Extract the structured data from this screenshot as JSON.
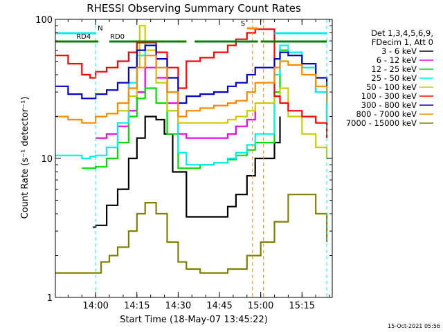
{
  "chart_data": {
    "type": "line",
    "title": "RHESSI Observing Summary Count Rates",
    "xlabel": "Start Time (18-May-07 13:45:22)",
    "ylabel": "Count Rate (s⁻¹ detector⁻¹)",
    "yscale": "log",
    "ylim": [
      1,
      100
    ],
    "xlim": [
      "13:45:22",
      "15:26"
    ],
    "x_ticks": [
      "14:00",
      "14:15",
      "14:30",
      "14:45",
      "15:00",
      "15:15"
    ],
    "y_ticks": [
      "1",
      "10",
      "100"
    ],
    "legend": {
      "position": "right",
      "header": [
        "Det 1,3,4,5,6,9,",
        "FDecim 1, Att 0"
      ],
      "entries": [
        {
          "label": "3 - 6 keV",
          "color": "#000000"
        },
        {
          "label": "6 - 12 keV",
          "color": "#ee00ee"
        },
        {
          "label": "12 - 25 keV",
          "color": "#00dd00"
        },
        {
          "label": "25 - 50 keV",
          "color": "#00eeee"
        },
        {
          "label": "50 - 100 keV",
          "color": "#cccc00"
        },
        {
          "label": "100 - 300 keV",
          "color": "#ff0000"
        },
        {
          "label": "300 - 800 keV",
          "color": "#0000cc"
        },
        {
          "label": "800 - 7000 keV",
          "color": "#ff8800"
        },
        {
          "label": "7000 - 15000 keV",
          "color": "#808000"
        }
      ]
    },
    "series": [
      {
        "name": "3 - 6 keV",
        "color": "#000000",
        "x": [
          "13:59",
          "14:00",
          "14:04",
          "14:08",
          "14:12",
          "14:15",
          "14:18",
          "14:22",
          "14:25",
          "14:28",
          "14:33",
          "14:38",
          "14:43",
          "14:48",
          "14:51",
          "14:55",
          "14:58",
          "15:05",
          "15:07"
        ],
        "y": [
          3.2,
          3.3,
          4.6,
          6.0,
          10,
          14,
          20,
          19,
          15,
          8,
          3.8,
          3.8,
          3.8,
          4.5,
          5.5,
          7.5,
          10,
          13,
          20
        ]
      },
      {
        "name": "6 - 12 keV",
        "color": "#ee00ee",
        "x": [
          "14:00",
          "14:04",
          "14:08",
          "14:12",
          "14:15",
          "14:18",
          "14:22",
          "14:26",
          "14:30",
          "14:33",
          "14:38",
          "14:43",
          "14:48",
          "14:51",
          "14:55",
          "14:58"
        ],
        "y": [
          14,
          15,
          17,
          22,
          30,
          45,
          38,
          25,
          15,
          14,
          14,
          14,
          15,
          17,
          19,
          23
        ]
      },
      {
        "name": "12 - 25 keV",
        "color": "#00dd00",
        "x": [
          "13:55",
          "13:58",
          "14:00",
          "14:04",
          "14:08",
          "14:12",
          "14:15",
          "14:18",
          "14:22",
          "14:26",
          "14:30",
          "14:33",
          "14:38",
          "14:43",
          "14:48",
          "14:51",
          "14:55",
          "14:58",
          "15:05",
          "15:07",
          "15:10",
          "15:15",
          "15:20",
          "15:24"
        ],
        "y": [
          8.5,
          8.5,
          8.7,
          10,
          13,
          20,
          27,
          32,
          25,
          15,
          8.5,
          8.5,
          9,
          9.3,
          9.8,
          10.5,
          11.5,
          13,
          30,
          60,
          55,
          45,
          30,
          18
        ]
      },
      {
        "name": "25 - 50 keV",
        "color": "#00eeee",
        "x": [
          "13:45:22",
          "13:55",
          "13:58",
          "14:00",
          "14:04",
          "14:08",
          "14:12",
          "14:15",
          "14:18",
          "14:22",
          "14:26",
          "14:30",
          "14:33",
          "14:38",
          "14:43",
          "14:48",
          "14:51",
          "14:55",
          "14:58",
          "15:05",
          "15:07",
          "15:10",
          "15:15",
          "15:20",
          "15:24"
        ],
        "y": [
          10.5,
          10,
          10.3,
          10.5,
          12,
          18,
          35,
          55,
          65,
          45,
          22,
          11,
          9,
          9,
          9.3,
          10,
          11,
          12.5,
          15,
          40,
          65,
          58,
          45,
          30,
          17
        ]
      },
      {
        "name": "50 - 100 keV",
        "color": "#cccc00",
        "x": [
          "14:04",
          "14:08",
          "14:12",
          "14:15",
          "14:16",
          "14:18",
          "14:22",
          "14:26",
          "14:30",
          "14:33",
          "14:38",
          "14:43",
          "14:48",
          "14:51",
          "14:55",
          "14:58",
          "15:05",
          "15:07",
          "15:10",
          "15:15",
          "15:20",
          "15:24"
        ],
        "y": [
          21,
          22,
          28,
          45,
          90,
          60,
          35,
          22,
          18,
          18,
          18,
          18,
          19,
          20,
          22,
          25,
          28,
          32,
          20,
          15,
          12,
          10
        ]
      },
      {
        "name": "100 - 300 keV",
        "color": "#ff0000",
        "x": [
          "13:45:22",
          "13:50",
          "13:55",
          "13:58",
          "14:00",
          "14:04",
          "14:08",
          "14:12",
          "14:15",
          "14:18",
          "14:22",
          "14:26",
          "14:30",
          "14:33",
          "14:38",
          "14:43",
          "14:48",
          "14:51",
          "14:55",
          "14:58",
          "15:05",
          "15:07",
          "15:10",
          "15:15",
          "15:20",
          "15:24"
        ],
        "y": [
          55,
          48,
          40,
          38,
          42,
          45,
          50,
          58,
          68,
          68,
          58,
          45,
          32,
          50,
          53,
          58,
          65,
          72,
          80,
          85,
          28,
          25,
          22,
          20,
          18,
          14
        ]
      },
      {
        "name": "300 - 800 keV",
        "color": "#0000cc",
        "x": [
          "13:45:22",
          "13:50",
          "13:55",
          "13:58",
          "14:00",
          "14:04",
          "14:08",
          "14:12",
          "14:15",
          "14:18",
          "14:22",
          "14:26",
          "14:30",
          "14:33",
          "14:38",
          "14:43",
          "14:48",
          "14:51",
          "14:55",
          "14:58",
          "15:05",
          "15:07",
          "15:10",
          "15:15",
          "15:20",
          "15:24"
        ],
        "y": [
          33,
          29,
          27,
          27,
          29,
          31,
          35,
          45,
          60,
          65,
          52,
          38,
          25,
          28,
          29,
          30,
          33,
          35,
          40,
          45,
          52,
          58,
          55,
          48,
          38,
          26
        ]
      },
      {
        "name": "800 - 7000 keV",
        "color": "#ff8800",
        "x": [
          "13:45:22",
          "13:50",
          "13:55",
          "13:58",
          "14:00",
          "14:04",
          "14:08",
          "14:12",
          "14:15",
          "14:18",
          "14:22",
          "14:26",
          "14:30",
          "14:33",
          "14:38",
          "14:43",
          "14:48",
          "14:51",
          "14:55",
          "14:58",
          "15:05",
          "15:07",
          "15:10",
          "15:15",
          "15:20",
          "15:24"
        ],
        "y": [
          20,
          19,
          18,
          18,
          20,
          21,
          25,
          32,
          45,
          55,
          45,
          30,
          20,
          22,
          23,
          24,
          25,
          26,
          30,
          35,
          45,
          50,
          47,
          40,
          33,
          25
        ]
      },
      {
        "name": "7000 - 15000 keV",
        "color": "#808000",
        "x": [
          "13:45:22",
          "13:55",
          "13:58",
          "14:02",
          "14:05",
          "14:08",
          "14:12",
          "14:15",
          "14:18",
          "14:22",
          "14:26",
          "14:30",
          "14:33",
          "14:38",
          "14:43",
          "14:48",
          "14:55",
          "15:00",
          "15:05",
          "15:10",
          "15:15",
          "15:20",
          "15:24"
        ],
        "y": [
          1.5,
          1.5,
          1.5,
          1.8,
          2,
          2.3,
          3,
          4,
          4.8,
          4,
          2.5,
          1.8,
          1.6,
          1.5,
          1.5,
          1.6,
          2,
          2.5,
          3.5,
          5.5,
          5.5,
          4,
          2.5
        ]
      }
    ],
    "state_bars": [
      {
        "name": "N",
        "color": "#00eeee",
        "segments": [
          [
            "13:45:22",
            "14:00"
          ],
          [
            "15:05",
            "15:24"
          ]
        ]
      },
      {
        "name": "RD4",
        "color": "#008000",
        "segments": [
          [
            "13:45:22",
            "14:01"
          ]
        ]
      },
      {
        "name": "RD0",
        "color": "#008000",
        "segments": [
          [
            "14:05",
            "14:33"
          ],
          [
            "14:36",
            "14:59"
          ],
          [
            "15:00",
            "15:24"
          ]
        ]
      },
      {
        "name": "S",
        "color": "#ff8800",
        "segments": [
          [
            "14:55",
            "14:59"
          ]
        ]
      }
    ],
    "vlines": [
      {
        "x": "14:00",
        "color": "#00eeee"
      },
      {
        "x": "14:57",
        "color": "#ff8800"
      },
      {
        "x": "15:01",
        "color": "#ff8800"
      },
      {
        "x": "15:24",
        "color": "#00eeee"
      }
    ],
    "grid": false
  },
  "footer_timestamp": "15-Oct-2021 05:56"
}
